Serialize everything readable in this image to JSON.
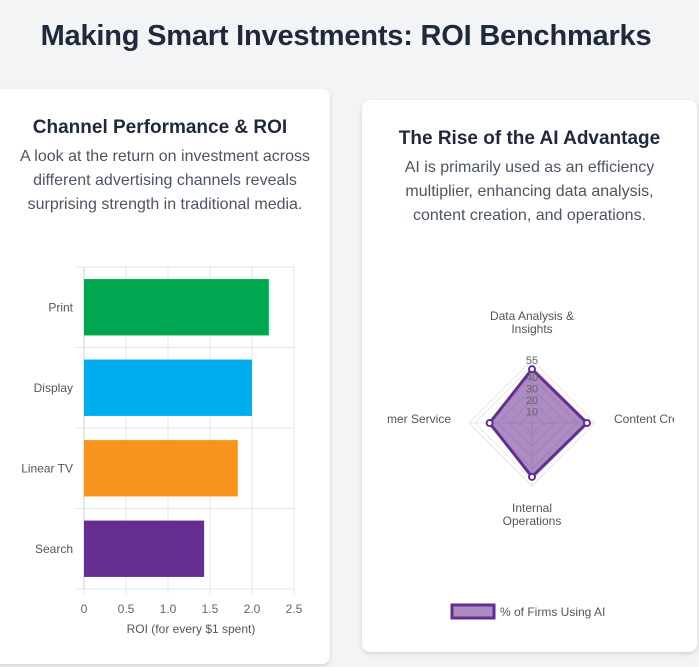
{
  "page": {
    "title": "Making Smart Investments: ROI Benchmarks"
  },
  "left_card": {
    "title": "Channel Performance & ROI",
    "description": "A look at the return on investment across different advertising channels reveals surprising strength in traditional media."
  },
  "right_card": {
    "title": "The Rise of the AI Advantage",
    "description": "AI is primarily used as an efficiency multiplier, enhancing data analysis, content creation, and operations."
  },
  "chart_data": [
    {
      "type": "bar",
      "orientation": "horizontal",
      "categories": [
        "Print",
        "Display",
        "Linear TV",
        "Search"
      ],
      "values": [
        2.2,
        2.0,
        1.83,
        1.43
      ],
      "colors": [
        "#00a650",
        "#00aeef",
        "#f7941d",
        "#662d91"
      ],
      "xlabel": "ROI (for every $1 spent)",
      "xlim": [
        0,
        2.5
      ],
      "xticks": [
        "0",
        "0.5",
        "1.0",
        "1.5",
        "2.0",
        "2.5"
      ],
      "grid": true
    },
    {
      "type": "radar",
      "axes": [
        "Data Analysis & Insights",
        "Content Creation",
        "Internal Operations",
        "Customer Service"
      ],
      "axis_labels_visible": [
        [
          "Data Analysis &",
          "Insights"
        ],
        [
          "Content Cre"
        ],
        [
          "Internal",
          "Operations"
        ],
        [
          "mer Service"
        ]
      ],
      "series": [
        {
          "name": "% of Firms Using AI",
          "values": [
            47,
            48,
            47,
            37
          ],
          "color": "#662d91",
          "fill": "#662d91"
        }
      ],
      "rlim": [
        0,
        55
      ],
      "rticks": [
        "10",
        "20",
        "30",
        "40",
        "55"
      ],
      "legend_position": "bottom"
    }
  ]
}
